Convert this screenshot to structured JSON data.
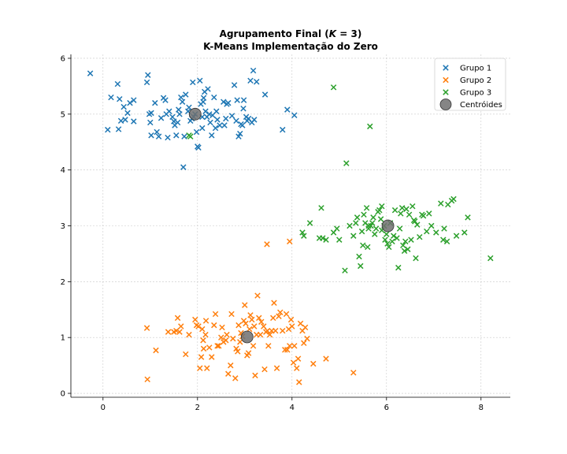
{
  "chart_data": {
    "type": "scatter",
    "title_parts": [
      "Agrupamento Final (",
      "K",
      " = 3)"
    ],
    "subtitle": "K-Means Implementação do Zero",
    "xlabel": "",
    "ylabel": "",
    "xlim": [
      -0.68,
      8.62
    ],
    "ylim": [
      -0.07,
      6.07
    ],
    "xticks": [
      0,
      2,
      4,
      6,
      8
    ],
    "yticks": [
      0,
      1,
      2,
      3,
      4,
      5,
      6
    ],
    "grid": true,
    "legend_position": "top-right",
    "colors": {
      "Grupo 1": "#1f77b4",
      "Grupo 2": "#ff7f0e",
      "Grupo 3": "#2ca02c",
      "Centróides": "#707070"
    },
    "series": [
      {
        "name": "Grupo 1",
        "marker": "x",
        "points": [
          [
            -0.27,
            5.73
          ],
          [
            0.1,
            4.72
          ],
          [
            0.17,
            5.3
          ],
          [
            0.31,
            5.54
          ],
          [
            0.33,
            4.73
          ],
          [
            0.35,
            5.27
          ],
          [
            0.38,
            4.88
          ],
          [
            0.44,
            5.13
          ],
          [
            0.47,
            4.9
          ],
          [
            0.52,
            5.02
          ],
          [
            0.57,
            5.2
          ],
          [
            0.65,
            5.25
          ],
          [
            0.65,
            4.87
          ],
          [
            0.93,
            5.57
          ],
          [
            0.95,
            5.7
          ],
          [
            0.98,
            5.0
          ],
          [
            1.0,
            4.85
          ],
          [
            1.02,
            5.02
          ],
          [
            1.02,
            4.62
          ],
          [
            1.1,
            5.2
          ],
          [
            1.14,
            4.68
          ],
          [
            1.18,
            4.6
          ],
          [
            1.23,
            4.93
          ],
          [
            1.28,
            5.29
          ],
          [
            1.32,
            5.25
          ],
          [
            1.34,
            5.0
          ],
          [
            1.37,
            4.58
          ],
          [
            1.4,
            5.05
          ],
          [
            1.47,
            4.95
          ],
          [
            1.5,
            4.87
          ],
          [
            1.52,
            4.8
          ],
          [
            1.55,
            4.62
          ],
          [
            1.58,
            4.85
          ],
          [
            1.6,
            5.08
          ],
          [
            1.62,
            5.0
          ],
          [
            1.65,
            5.3
          ],
          [
            1.68,
            5.22
          ],
          [
            1.7,
            4.05
          ],
          [
            1.72,
            4.6
          ],
          [
            1.75,
            5.35
          ],
          [
            1.8,
            5.05
          ],
          [
            1.82,
            5.12
          ],
          [
            1.85,
            4.88
          ],
          [
            1.88,
            4.92
          ],
          [
            1.9,
            5.57
          ],
          [
            1.92,
            4.95
          ],
          [
            1.95,
            5.0
          ],
          [
            1.98,
            4.68
          ],
          [
            2.0,
            4.42
          ],
          [
            2.02,
            4.4
          ],
          [
            2.05,
            5.6
          ],
          [
            2.07,
            5.18
          ],
          [
            2.1,
            4.75
          ],
          [
            2.1,
            4.95
          ],
          [
            2.12,
            5.22
          ],
          [
            2.13,
            5.29
          ],
          [
            2.15,
            5.4
          ],
          [
            2.17,
            5.05
          ],
          [
            2.2,
            4.95
          ],
          [
            2.22,
            5.45
          ],
          [
            2.25,
            5.0
          ],
          [
            2.27,
            4.85
          ],
          [
            2.3,
            4.62
          ],
          [
            2.32,
            4.98
          ],
          [
            2.35,
            5.3
          ],
          [
            2.38,
            4.75
          ],
          [
            2.4,
            5.05
          ],
          [
            2.42,
            4.9
          ],
          [
            2.47,
            4.8
          ],
          [
            2.55,
            5.22
          ],
          [
            2.57,
            4.8
          ],
          [
            2.6,
            4.92
          ],
          [
            2.62,
            5.18
          ],
          [
            2.65,
            5.2
          ],
          [
            2.73,
            4.97
          ],
          [
            2.78,
            5.52
          ],
          [
            2.82,
            4.88
          ],
          [
            2.84,
            5.25
          ],
          [
            2.87,
            4.6
          ],
          [
            2.9,
            4.65
          ],
          [
            2.92,
            4.82
          ],
          [
            2.95,
            4.8
          ],
          [
            2.97,
            5.1
          ],
          [
            2.98,
            5.25
          ],
          [
            3.03,
            4.95
          ],
          [
            3.05,
            4.88
          ],
          [
            3.08,
            4.92
          ],
          [
            3.12,
            5.6
          ],
          [
            3.15,
            4.85
          ],
          [
            3.18,
            5.78
          ],
          [
            3.2,
            4.9
          ],
          [
            3.25,
            5.58
          ],
          [
            3.43,
            5.35
          ],
          [
            3.8,
            4.72
          ],
          [
            3.9,
            5.08
          ],
          [
            4.05,
            4.98
          ]
        ]
      },
      {
        "name": "Grupo 2",
        "marker": "x",
        "points": [
          [
            0.93,
            1.17
          ],
          [
            0.94,
            0.25
          ],
          [
            1.12,
            0.77
          ],
          [
            1.38,
            1.1
          ],
          [
            1.5,
            1.1
          ],
          [
            1.55,
            1.12
          ],
          [
            1.58,
            1.35
          ],
          [
            1.62,
            1.1
          ],
          [
            1.65,
            1.2
          ],
          [
            1.75,
            0.7
          ],
          [
            1.82,
            1.05
          ],
          [
            1.95,
            1.32
          ],
          [
            1.98,
            1.22
          ],
          [
            2.02,
            1.2
          ],
          [
            2.05,
            0.45
          ],
          [
            2.08,
            0.65
          ],
          [
            2.1,
            1.15
          ],
          [
            2.12,
            0.95
          ],
          [
            2.13,
            0.8
          ],
          [
            2.17,
            1.05
          ],
          [
            2.18,
            1.3
          ],
          [
            2.2,
            0.45
          ],
          [
            2.25,
            0.82
          ],
          [
            2.3,
            0.65
          ],
          [
            2.35,
            1.22
          ],
          [
            2.38,
            1.42
          ],
          [
            2.42,
            0.85
          ],
          [
            2.45,
            0.85
          ],
          [
            2.5,
            1.0
          ],
          [
            2.52,
            1.18
          ],
          [
            2.55,
            0.92
          ],
          [
            2.6,
            0.95
          ],
          [
            2.62,
            1.05
          ],
          [
            2.65,
            0.35
          ],
          [
            2.7,
            0.5
          ],
          [
            2.72,
            1.42
          ],
          [
            2.75,
            0.98
          ],
          [
            2.8,
            0.27
          ],
          [
            2.82,
            0.8
          ],
          [
            2.85,
            0.75
          ],
          [
            2.87,
            1.22
          ],
          [
            2.9,
            0.92
          ],
          [
            2.92,
            1.08
          ],
          [
            2.95,
            1.02
          ],
          [
            2.98,
            1.3
          ],
          [
            3.0,
            1.58
          ],
          [
            3.02,
            1.25
          ],
          [
            3.05,
            0.68
          ],
          [
            3.08,
            0.72
          ],
          [
            3.1,
            1.15
          ],
          [
            3.12,
            1.4
          ],
          [
            3.15,
            1.32
          ],
          [
            3.18,
            0.85
          ],
          [
            3.2,
            1.2
          ],
          [
            3.22,
            0.32
          ],
          [
            3.25,
            1.05
          ],
          [
            3.27,
            1.75
          ],
          [
            3.3,
            1.35
          ],
          [
            3.33,
            1.05
          ],
          [
            3.35,
            1.28
          ],
          [
            3.4,
            1.2
          ],
          [
            3.42,
            0.43
          ],
          [
            3.45,
            1.1
          ],
          [
            3.48,
            1.12
          ],
          [
            3.5,
            0.85
          ],
          [
            3.53,
            1.05
          ],
          [
            3.57,
            1.12
          ],
          [
            3.6,
            1.35
          ],
          [
            3.62,
            1.62
          ],
          [
            3.65,
            1.12
          ],
          [
            3.68,
            0.45
          ],
          [
            3.72,
            1.38
          ],
          [
            3.75,
            1.45
          ],
          [
            3.8,
            1.12
          ],
          [
            3.85,
            0.78
          ],
          [
            3.88,
            1.42
          ],
          [
            3.9,
            0.78
          ],
          [
            3.93,
            1.15
          ],
          [
            3.95,
            0.85
          ],
          [
            3.98,
            1.32
          ],
          [
            4.0,
            1.2
          ],
          [
            4.03,
            0.55
          ],
          [
            4.05,
            0.85
          ],
          [
            4.1,
            0.45
          ],
          [
            4.13,
            0.62
          ],
          [
            4.15,
            0.2
          ],
          [
            4.18,
            1.25
          ],
          [
            4.22,
            1.12
          ],
          [
            4.25,
            0.9
          ],
          [
            4.28,
            1.18
          ],
          [
            4.32,
            0.98
          ],
          [
            4.45,
            0.53
          ],
          [
            4.72,
            0.62
          ],
          [
            5.3,
            0.37
          ],
          [
            3.47,
            2.67
          ],
          [
            3.95,
            2.72
          ]
        ]
      },
      {
        "name": "Grupo 3",
        "marker": "x",
        "points": [
          [
            1.82,
            4.62
          ],
          [
            1.85,
            4.6
          ],
          [
            4.22,
            2.88
          ],
          [
            4.25,
            2.82
          ],
          [
            4.38,
            3.05
          ],
          [
            4.58,
            2.78
          ],
          [
            4.62,
            3.32
          ],
          [
            4.65,
            2.78
          ],
          [
            4.72,
            2.75
          ],
          [
            4.88,
            5.48
          ],
          [
            4.88,
            2.88
          ],
          [
            4.95,
            2.95
          ],
          [
            5.0,
            2.75
          ],
          [
            5.12,
            2.2
          ],
          [
            5.15,
            4.12
          ],
          [
            5.22,
            3.0
          ],
          [
            5.3,
            2.82
          ],
          [
            5.35,
            3.05
          ],
          [
            5.38,
            3.15
          ],
          [
            5.42,
            2.45
          ],
          [
            5.45,
            2.28
          ],
          [
            5.48,
            2.9
          ],
          [
            5.5,
            2.65
          ],
          [
            5.52,
            3.2
          ],
          [
            5.55,
            3.05
          ],
          [
            5.58,
            3.32
          ],
          [
            5.6,
            2.62
          ],
          [
            5.62,
            2.95
          ],
          [
            5.65,
            4.78
          ],
          [
            5.67,
            3.0
          ],
          [
            5.7,
            3.05
          ],
          [
            5.72,
            3.15
          ],
          [
            5.75,
            2.85
          ],
          [
            5.78,
            2.95
          ],
          [
            5.82,
            3.25
          ],
          [
            5.85,
            3.28
          ],
          [
            5.88,
            3.12
          ],
          [
            5.9,
            2.92
          ],
          [
            5.95,
            3.0
          ],
          [
            5.97,
            2.75
          ],
          [
            6.0,
            2.85
          ],
          [
            6.02,
            2.68
          ],
          [
            6.05,
            2.62
          ],
          [
            6.08,
            3.05
          ],
          [
            6.12,
            2.72
          ],
          [
            6.15,
            2.82
          ],
          [
            6.18,
            3.28
          ],
          [
            6.22,
            2.78
          ],
          [
            6.25,
            2.25
          ],
          [
            6.28,
            2.95
          ],
          [
            6.3,
            3.22
          ],
          [
            6.33,
            3.32
          ],
          [
            6.35,
            2.65
          ],
          [
            6.38,
            2.55
          ],
          [
            6.42,
            3.3
          ],
          [
            6.45,
            2.58
          ],
          [
            6.48,
            3.2
          ],
          [
            6.52,
            2.75
          ],
          [
            6.55,
            3.35
          ],
          [
            6.58,
            3.1
          ],
          [
            6.6,
            3.08
          ],
          [
            6.62,
            2.42
          ],
          [
            6.65,
            3.02
          ],
          [
            6.7,
            2.8
          ],
          [
            6.75,
            3.2
          ],
          [
            6.78,
            3.18
          ],
          [
            6.85,
            2.9
          ],
          [
            6.9,
            3.22
          ],
          [
            6.95,
            3.0
          ],
          [
            7.05,
            2.88
          ],
          [
            7.15,
            3.4
          ],
          [
            7.2,
            2.75
          ],
          [
            7.22,
            2.95
          ],
          [
            7.28,
            2.72
          ],
          [
            7.3,
            3.38
          ],
          [
            7.38,
            3.45
          ],
          [
            7.42,
            3.48
          ],
          [
            7.48,
            2.82
          ],
          [
            7.65,
            2.88
          ],
          [
            7.72,
            3.15
          ],
          [
            8.2,
            2.42
          ],
          [
            5.9,
            3.35
          ],
          [
            6.4,
            2.72
          ],
          [
            5.62,
            3.0
          ]
        ]
      },
      {
        "name": "Centróides",
        "marker": "o",
        "points": [
          [
            1.95,
            5.0
          ],
          [
            3.05,
            1.01
          ],
          [
            6.03,
            3.0
          ]
        ]
      }
    ]
  }
}
